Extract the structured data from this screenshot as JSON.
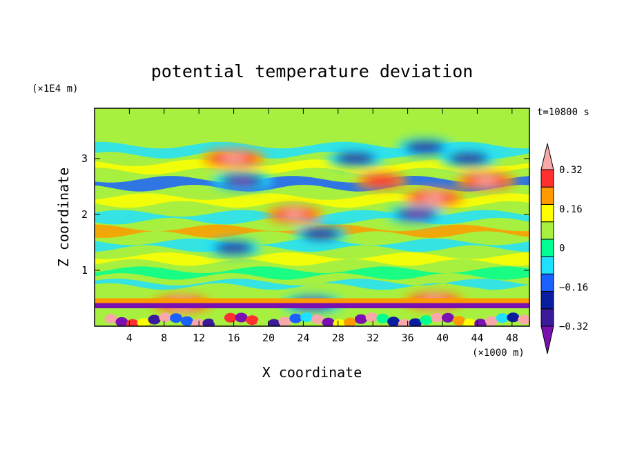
{
  "chart_data": {
    "type": "heatmap",
    "title": "potential temperature deviation",
    "xlabel": "X coordinate",
    "ylabel": "Z coordinate",
    "x_units": "(×1000 m)",
    "y_units": "(×1E4 m)",
    "time_label": "t=10800 s",
    "xlim": [
      0,
      50
    ],
    "ylim": [
      0,
      3.9
    ],
    "x_ticks": [
      4,
      8,
      12,
      16,
      20,
      24,
      28,
      32,
      36,
      40,
      44,
      48
    ],
    "y_ticks": [
      1,
      2,
      3
    ],
    "colorbar": {
      "levels": [
        -0.4,
        -0.32,
        -0.24,
        -0.16,
        -0.08,
        0,
        0.08,
        0.16,
        0.24,
        0.32,
        0.4
      ],
      "tick_labels": [
        "0.32",
        "0.16",
        "0",
        "−0.16",
        "−0.32"
      ],
      "tick_values": [
        0.32,
        0.16,
        0,
        -0.16,
        -0.32
      ],
      "colors": [
        "#7a10b0",
        "#3a1a9a",
        "#0a1ca0",
        "#1a60ff",
        "#20e0ff",
        "#00ff90",
        "#a8f040",
        "#ffff00",
        "#ff9a00",
        "#ff3030",
        "#f8a8a8"
      ],
      "extend": "both"
    },
    "field_features": [
      {
        "x": 16,
        "z": 3.0,
        "value": 0.5
      },
      {
        "x": 17,
        "z": 2.6,
        "value": -0.45
      },
      {
        "x": 23,
        "z": 2.0,
        "value": 0.4
      },
      {
        "x": 30,
        "z": 3.0,
        "value": -0.4
      },
      {
        "x": 33,
        "z": 2.6,
        "value": 0.3
      },
      {
        "x": 39,
        "z": 2.3,
        "value": 0.45
      },
      {
        "x": 45,
        "z": 2.6,
        "value": 0.45
      },
      {
        "x": 38,
        "z": 3.2,
        "value": -0.4
      },
      {
        "x": 43,
        "z": 3.0,
        "value": -0.4
      },
      {
        "x": 37,
        "z": 2.0,
        "value": -0.42
      },
      {
        "x": 16,
        "z": 1.4,
        "value": -0.35
      },
      {
        "x": 26,
        "z": 1.65,
        "value": -0.35
      },
      {
        "x": 25,
        "z": 0.4,
        "value": -0.45
      },
      {
        "x": 10,
        "z": 0.4,
        "value": 0.45
      },
      {
        "x": 39,
        "z": 0.45,
        "value": 0.45
      }
    ]
  }
}
